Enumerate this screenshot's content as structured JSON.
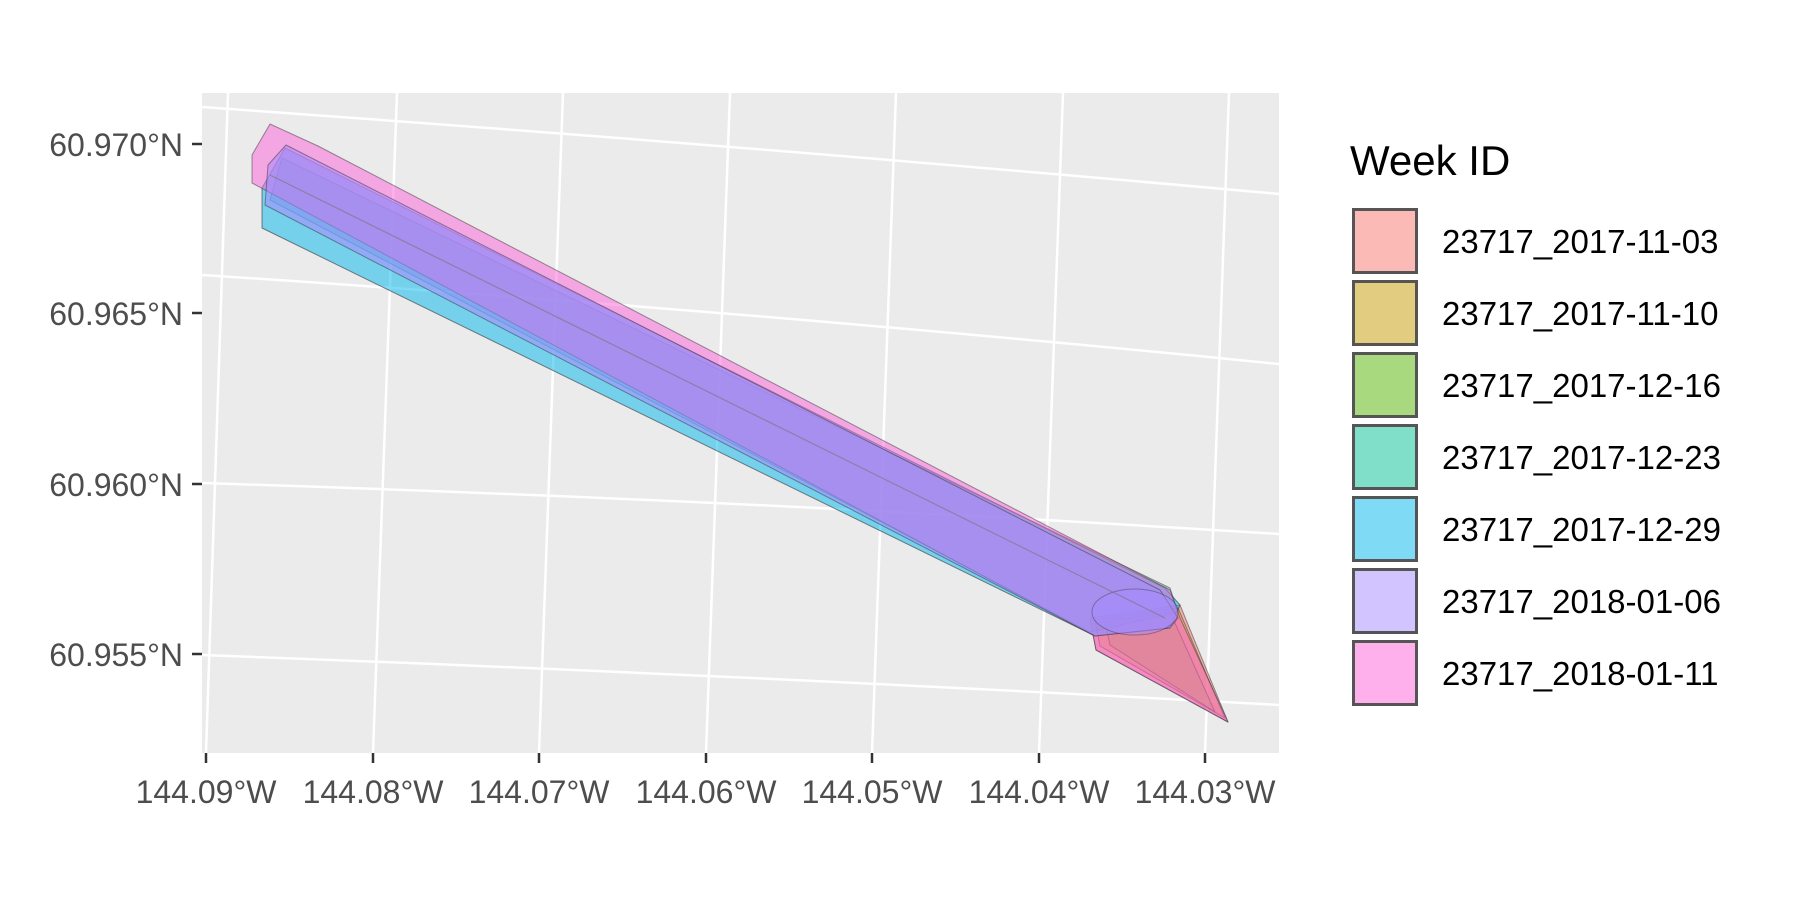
{
  "chart_data": {
    "type": "map",
    "x_ticks": [
      "144.09°W",
      "144.08°W",
      "144.07°W",
      "144.06°W",
      "144.05°W",
      "144.04°W",
      "144.03°W"
    ],
    "y_ticks": [
      "60.970°N",
      "60.965°N",
      "60.960°N",
      "60.955°N"
    ],
    "legend": {
      "title": "Week ID",
      "placement": "right",
      "items": [
        {
          "label": "23717_2017-11-03",
          "color": "#F8766D"
        },
        {
          "label": "23717_2017-11-10",
          "color": "#C49A00"
        },
        {
          "label": "23717_2017-12-16",
          "color": "#53B400"
        },
        {
          "label": "23717_2017-12-23",
          "color": "#00C094"
        },
        {
          "label": "23717_2017-12-29",
          "color": "#00B6EB"
        },
        {
          "label": "23717_2018-01-06",
          "color": "#A58AFF"
        },
        {
          "label": "23717_2018-01-11",
          "color": "#FB61D7"
        }
      ]
    },
    "panel_background": "#EBEBEB",
    "grid": true
  }
}
